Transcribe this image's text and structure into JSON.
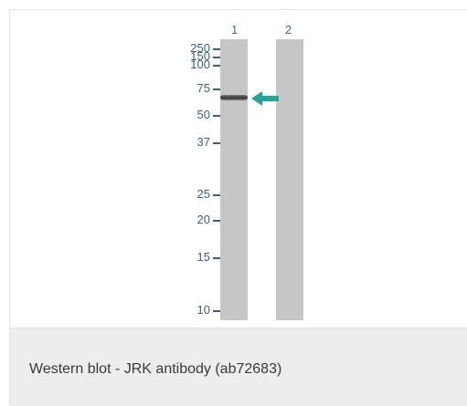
{
  "lanes": [
    {
      "number": "1"
    },
    {
      "number": "2"
    }
  ],
  "markers": [
    "250",
    "150",
    "100",
    "75",
    "50",
    "37",
    "25",
    "20",
    "15",
    "10"
  ],
  "caption": "Western blot - JRK antibody (ab72683)",
  "colors": {
    "lane": "#c6c6c6",
    "marker_text": "#3f5e85",
    "arrow": "#1fa59a",
    "caption_bg": "#ededed"
  },
  "icons": {
    "band_indicator": "arrow-left-icon"
  }
}
